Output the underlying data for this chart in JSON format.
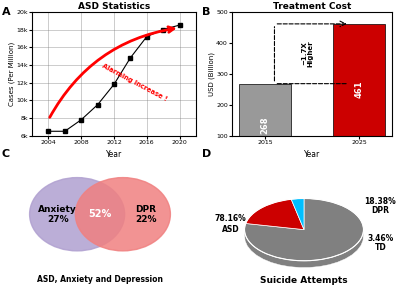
{
  "panel_A": {
    "title": "ASD Statistics",
    "xlabel": "Year",
    "ylabel": "Cases (Per Million)",
    "x": [
      2004,
      2006,
      2008,
      2010,
      2012,
      2014,
      2016,
      2018,
      2020
    ],
    "y": [
      6500,
      6500,
      7800,
      9500,
      11800,
      14800,
      17200,
      18000,
      18500
    ],
    "ylim": [
      6000,
      20000
    ],
    "yticks": [
      6000,
      8000,
      10000,
      12000,
      14000,
      16000,
      18000,
      20000
    ],
    "ytick_labels": [
      "6k",
      "8k",
      "10k",
      "12k",
      "14k",
      "16k",
      "18k",
      "20k"
    ],
    "xticks": [
      2004,
      2008,
      2012,
      2016,
      2020
    ],
    "alarm_text": "Alarming Increase !",
    "alarm_color": "#FF0000"
  },
  "panel_B": {
    "title": "Treatment Cost",
    "xlabel": "Year",
    "ylabel": "USD (Billion)",
    "categories": [
      "2015",
      "2025"
    ],
    "values": [
      268,
      461
    ],
    "bar_colors": [
      "#999999",
      "#CC0000"
    ],
    "ylim": [
      100,
      500
    ],
    "yticks": [
      100,
      200,
      300,
      400,
      500
    ],
    "annotation": "~1.7X\nHigher"
  },
  "panel_C": {
    "title": "ASD, Anxiety and Depression",
    "circle1_label": "Anxiety\n27%",
    "circle2_label": "DPR\n22%",
    "overlap_label": "52%",
    "circle1_color": "#b0a0d0",
    "circle2_color": "#f08080",
    "overlap_color": "#c86090"
  },
  "panel_D": {
    "title": "Suicide Attempts",
    "labels": [
      "ASD",
      "DPR",
      "TD"
    ],
    "sizes": [
      78.16,
      18.38,
      3.46
    ],
    "colors": [
      "#808080",
      "#CC0000",
      "#00BFFF"
    ],
    "pct_labels": [
      "78.16%\nASD",
      "18.38%\nDPR",
      "3.46%\nTD"
    ]
  },
  "bg_color": "#ffffff"
}
